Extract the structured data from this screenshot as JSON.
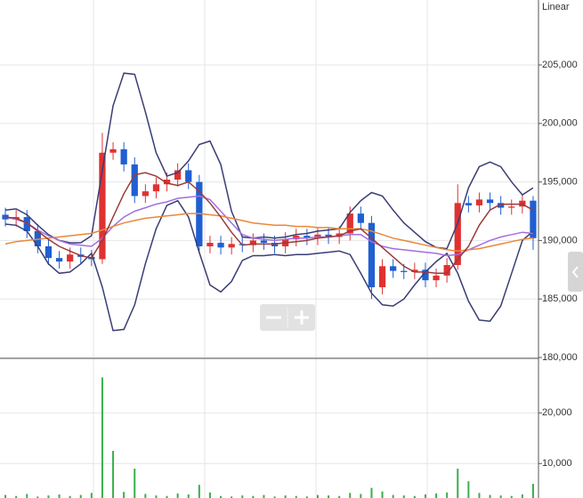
{
  "chart_data": {
    "type": "candlestick",
    "scale_label": "Linear",
    "up_color": "#e03131",
    "down_color": "#1f5fd1",
    "grid": true,
    "ylim": [
      180000,
      210550
    ],
    "yticks": [
      {
        "value": 180000,
        "label": "180,000"
      },
      {
        "value": 185000,
        "label": "185,000"
      },
      {
        "value": 190000,
        "label": "190,000"
      },
      {
        "value": 195000,
        "label": "195,000"
      },
      {
        "value": 200000,
        "label": "200,000"
      },
      {
        "value": 205000,
        "label": "205,000"
      }
    ],
    "open": [
      192200,
      191800,
      192000,
      190800,
      189500,
      188500,
      188200,
      188800,
      188600,
      188400,
      197500,
      197800,
      196500,
      193800,
      194200,
      194800,
      195200,
      196000,
      195000,
      189500,
      189800,
      189400,
      189700,
      189600,
      190000,
      189800,
      189500,
      190100,
      190400,
      190200,
      190500,
      190300,
      190600,
      192300,
      191500,
      186000,
      187800,
      187400,
      187300,
      187500,
      186600,
      187000,
      187900,
      193200,
      193000,
      193500,
      193200,
      192800,
      192900,
      193400
    ],
    "high": [
      192800,
      192600,
      192600,
      191400,
      190100,
      189100,
      189400,
      189400,
      189200,
      199200,
      198400,
      198400,
      197100,
      194800,
      195400,
      195800,
      196600,
      196600,
      195600,
      190400,
      190400,
      190300,
      190300,
      190600,
      190600,
      190400,
      190700,
      191000,
      191000,
      191100,
      191100,
      191200,
      192900,
      192900,
      192100,
      188400,
      188400,
      188000,
      188100,
      188100,
      187600,
      188500,
      194800,
      193800,
      194100,
      194100,
      193800,
      193500,
      194000,
      193800
    ],
    "low": [
      191200,
      191200,
      190200,
      188900,
      187900,
      187600,
      187600,
      188000,
      187800,
      188000,
      196900,
      195900,
      193200,
      193200,
      193600,
      194200,
      194600,
      194400,
      188900,
      188900,
      188800,
      188800,
      189000,
      189000,
      189200,
      188900,
      188900,
      189500,
      189600,
      189600,
      189700,
      189700,
      190000,
      190900,
      185000,
      185400,
      186800,
      186700,
      186700,
      186000,
      186000,
      186400,
      187500,
      192400,
      192400,
      192600,
      192200,
      192200,
      192300,
      189200
    ],
    "close": [
      191800,
      192000,
      190800,
      189500,
      188500,
      188200,
      188800,
      188600,
      188400,
      197500,
      197800,
      196500,
      193800,
      194200,
      194800,
      195200,
      196000,
      195000,
      189500,
      189800,
      189400,
      189700,
      189600,
      190000,
      189800,
      189500,
      190100,
      190400,
      190200,
      190500,
      190300,
      190600,
      192300,
      191500,
      186000,
      187800,
      187400,
      187300,
      187500,
      186600,
      187000,
      187900,
      193200,
      193000,
      193500,
      193200,
      192800,
      192900,
      193400,
      190200
    ],
    "lines": [
      {
        "color": "#3a3d75",
        "values": [
          192600,
          192700,
          192200,
          191300,
          190500,
          190000,
          189800,
          189800,
          190400,
          196000,
          201500,
          204300,
          204200,
          201000,
          197500,
          195500,
          195800,
          196800,
          198200,
          198500,
          196500,
          192500,
          190300,
          190200,
          190300,
          190200,
          190300,
          190500,
          190600,
          190800,
          190900,
          191000,
          192400,
          193400,
          194100,
          193800,
          192600,
          191500,
          190700,
          189900,
          189400,
          189300,
          191500,
          194500,
          196300,
          196700,
          196300,
          195000,
          193900,
          194500
        ]
      },
      {
        "color": "#3a3d75",
        "values": [
          191400,
          191300,
          190800,
          189500,
          188000,
          187200,
          187300,
          188000,
          188900,
          186000,
          182300,
          182400,
          184500,
          188000,
          191000,
          193000,
          193400,
          192000,
          189000,
          186200,
          185600,
          186500,
          188300,
          188700,
          188700,
          188800,
          188700,
          188800,
          188800,
          188900,
          189000,
          189100,
          188800,
          187200,
          185500,
          184500,
          184400,
          185000,
          186200,
          187300,
          188200,
          188900,
          187200,
          184800,
          183200,
          183100,
          184400,
          187200,
          190000,
          190800
        ]
      },
      {
        "color": "#a36ee0",
        "values": [
          192000,
          191800,
          191500,
          190900,
          190400,
          190000,
          189700,
          189600,
          189500,
          190200,
          191200,
          192000,
          192500,
          192800,
          193100,
          193300,
          193600,
          193700,
          193800,
          193500,
          192500,
          191500,
          190500,
          190200,
          190100,
          190000,
          190100,
          190200,
          190200,
          190300,
          190300,
          190400,
          190500,
          190500,
          189900,
          189500,
          189300,
          189200,
          189100,
          189000,
          188900,
          188700,
          188800,
          189200,
          189600,
          190000,
          190300,
          190500,
          190700,
          190600
        ]
      },
      {
        "color": "#e8883a",
        "values": [
          189700,
          189900,
          190000,
          190100,
          190200,
          190300,
          190400,
          190500,
          190600,
          190900,
          191200,
          191500,
          191700,
          191900,
          192000,
          192100,
          192200,
          192300,
          192300,
          192200,
          192100,
          191900,
          191700,
          191500,
          191400,
          191300,
          191300,
          191200,
          191200,
          191100,
          191100,
          191000,
          191000,
          191000,
          190800,
          190500,
          190200,
          190000,
          189800,
          189600,
          189400,
          189200,
          189100,
          189200,
          189300,
          189500,
          189700,
          189900,
          190100,
          190200
        ]
      },
      {
        "color": "#9a3a3a",
        "values": [
          192000,
          191900,
          191500,
          190800,
          190100,
          189500,
          189100,
          188700,
          188500,
          190000,
          192000,
          194000,
          195600,
          195800,
          195500,
          194900,
          194700,
          195000,
          194200,
          193200,
          192000,
          190700,
          189600,
          189700,
          189700,
          189700,
          189800,
          189900,
          190000,
          190200,
          190300,
          190400,
          190800,
          191000,
          190200,
          189400,
          188600,
          187800,
          187300,
          187300,
          187200,
          187200,
          188400,
          189500,
          191300,
          192600,
          193100,
          193100,
          193100,
          192600
        ]
      }
    ],
    "volume": {
      "color": "#38b04a",
      "ylim": [
        3200,
        30400
      ],
      "yticks": [
        {
          "value": 10000,
          "label": "10,000"
        },
        {
          "value": 20000,
          "label": "20,000"
        }
      ],
      "values": [
        3800,
        3600,
        4000,
        3500,
        3700,
        3900,
        3600,
        3800,
        4200,
        27000,
        12500,
        4400,
        9000,
        4000,
        3700,
        3600,
        4100,
        3900,
        5800,
        4300,
        3600,
        3500,
        3700,
        3600,
        3800,
        3500,
        3700,
        3600,
        3500,
        3800,
        3700,
        3600,
        4200,
        4000,
        5200,
        4500,
        3800,
        3700,
        3600,
        3900,
        4100,
        4300,
        9000,
        6500,
        4200,
        3800,
        3700,
        3600,
        3900,
        6000
      ]
    }
  }
}
